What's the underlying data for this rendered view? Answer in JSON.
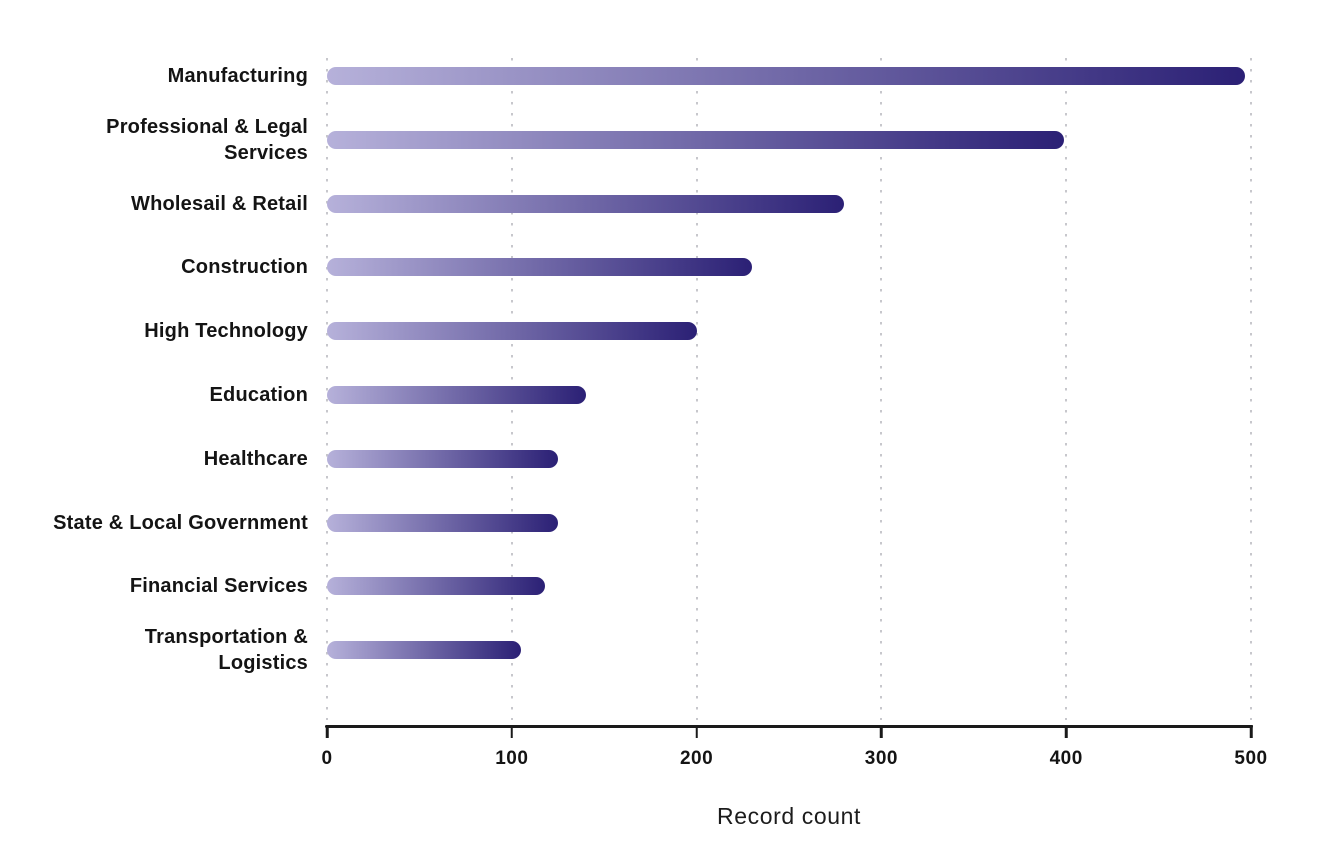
{
  "chart_data": {
    "type": "bar",
    "orientation": "horizontal",
    "xlabel": "Record count",
    "categories": [
      "Manufacturing",
      "Professional & Legal\nServices",
      "Wholesail & Retail",
      "Construction",
      "High Technology",
      "Education",
      "Healthcare",
      "State & Local Government",
      "Financial Services",
      "Transportation &\nLogistics"
    ],
    "values": [
      497,
      399,
      280,
      230,
      200,
      140,
      125,
      125,
      118,
      105
    ],
    "xlim": [
      0,
      500
    ],
    "x_ticks": [
      0,
      100,
      200,
      300,
      400,
      500
    ],
    "grid": "vertical-dotted",
    "legend": "none",
    "bar_style": {
      "gradient_start": "#b6b1da",
      "gradient_end": "#2b2075",
      "rounded_ends": true
    }
  },
  "colors": {
    "background": "#ffffff",
    "label_text": "#141414",
    "axis": "#1a1a1a",
    "gridline": "#c7c7cc"
  }
}
